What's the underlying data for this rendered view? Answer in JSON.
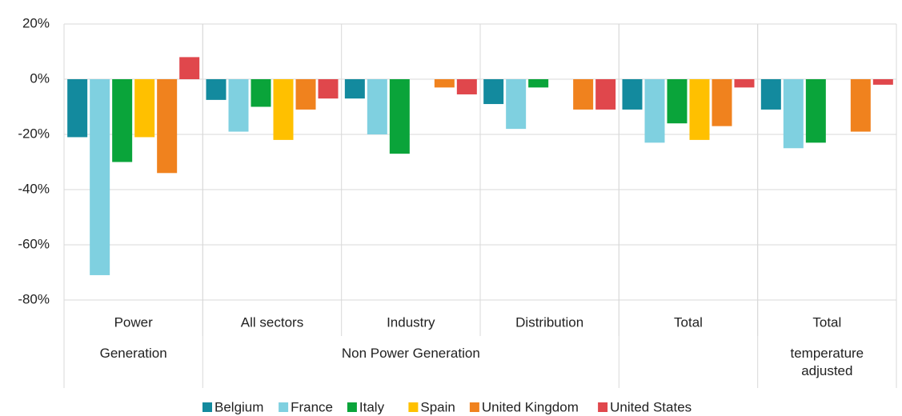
{
  "chart_data": {
    "type": "bar",
    "categories": [
      "Power",
      "All sectors",
      "Industry",
      "Distribution",
      "Total",
      "Total"
    ],
    "groups": [
      {
        "label": "Generation",
        "size": 1
      },
      {
        "label": "Non Power Generation",
        "size": 3
      },
      {
        "label": null,
        "size": 1
      },
      {
        "label": "temperature adjusted",
        "size": 1
      }
    ],
    "series": [
      {
        "name": "Belgium",
        "color": "#138a9e",
        "values": [
          -21,
          -7.5,
          -7,
          -9,
          -11,
          -11
        ]
      },
      {
        "name": "France",
        "color": "#7fd0e0",
        "values": [
          -71,
          -19,
          -20,
          -18,
          -23,
          -25
        ]
      },
      {
        "name": "Italy",
        "color": "#0aa43a",
        "values": [
          -30,
          -10,
          -27,
          -3,
          -16,
          -23
        ]
      },
      {
        "name": "Spain",
        "color": "#ffc000",
        "values": [
          -21,
          -22,
          null,
          null,
          -22,
          null
        ]
      },
      {
        "name": "United Kingdom",
        "color": "#f0821e",
        "values": [
          -34,
          -11,
          -3,
          -11,
          -17,
          -19
        ]
      },
      {
        "name": "United States",
        "color": "#e0474c",
        "values": [
          8,
          -7,
          -5.5,
          -11,
          -3,
          -2
        ]
      }
    ],
    "ylim": [
      -80,
      20
    ],
    "yticks": [
      {
        "value": -80,
        "label": "-80%"
      },
      {
        "value": -60,
        "label": "-60%"
      },
      {
        "value": -40,
        "label": "-40%"
      },
      {
        "value": -20,
        "label": "-20%"
      },
      {
        "value": 0,
        "label": "0%"
      },
      {
        "value": 20,
        "label": "20%"
      }
    ],
    "grid": true,
    "legend": "bottom"
  }
}
